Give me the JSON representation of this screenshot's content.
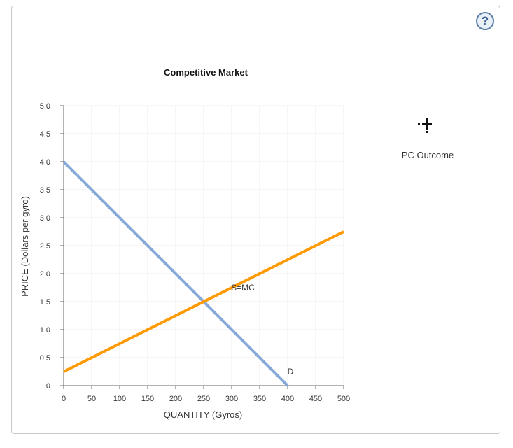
{
  "header": {
    "help_label": "?"
  },
  "chart_data": {
    "type": "line",
    "title": "Competitive Market",
    "xlabel": "QUANTITY (Gyros)",
    "ylabel": "PRICE (Dollars per gyro)",
    "xlim": [
      0,
      500
    ],
    "ylim": [
      0,
      5
    ],
    "x_ticks": [
      0,
      50,
      100,
      150,
      200,
      250,
      300,
      350,
      400,
      450,
      500
    ],
    "y_ticks": [
      {
        "value": 0,
        "label": "0"
      },
      {
        "value": 0.5,
        "label": "0.5"
      },
      {
        "value": 1,
        "label": "1.0"
      },
      {
        "value": 1.5,
        "label": "1.5"
      },
      {
        "value": 2,
        "label": "2.0"
      },
      {
        "value": 2.5,
        "label": "2.5"
      },
      {
        "value": 3,
        "label": "3.0"
      },
      {
        "value": 3.5,
        "label": "3.5"
      },
      {
        "value": 4,
        "label": "4.0"
      },
      {
        "value": 4.5,
        "label": "4.5"
      },
      {
        "value": 5,
        "label": "5.0"
      }
    ],
    "grid": true,
    "series": [
      {
        "name": "D",
        "color": "#86a9d8",
        "points": [
          [
            0,
            4
          ],
          [
            400,
            0
          ]
        ],
        "label_at": [
          405,
          0.2
        ]
      },
      {
        "name": "S=MC",
        "color": "#ff9900",
        "points": [
          [
            0,
            0.25
          ],
          [
            500,
            2.75
          ]
        ],
        "label_at": [
          320,
          1.7
        ]
      }
    ],
    "legend": {
      "label": "PC Outcome",
      "icon": "plus-marker-icon",
      "placement": "right"
    }
  }
}
